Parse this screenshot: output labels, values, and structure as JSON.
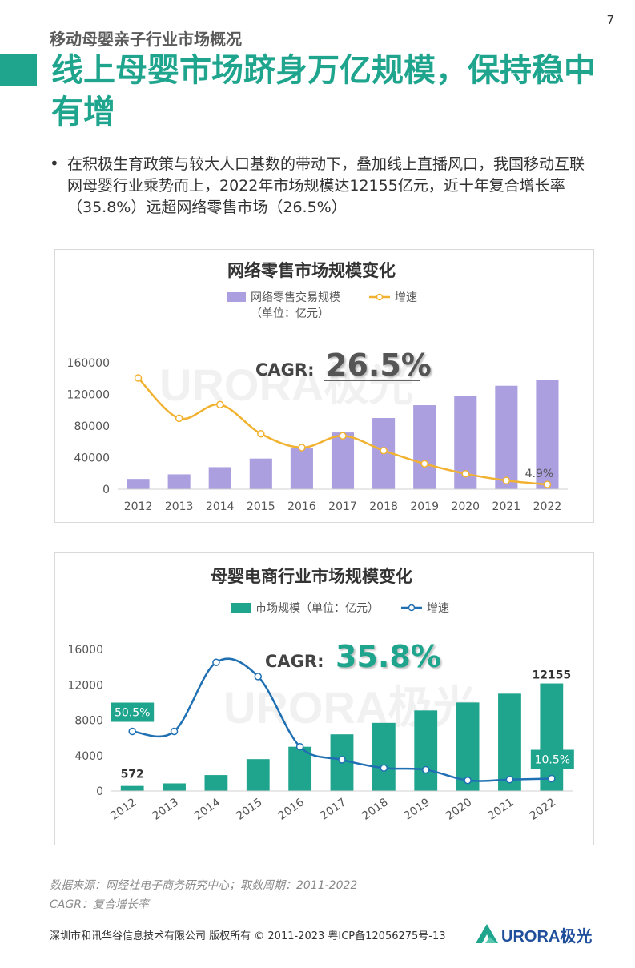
{
  "page": {
    "number": "7",
    "section": "移动母婴亲子行业市场概况",
    "title": "线上母婴市场跻身万亿规模，保持稳中有增",
    "bullet": "•",
    "summary": "在积极生育政策与较大人口基数的带动下，叠加线上直播风口，我国移动互联网母婴行业乘势而上，2022年市场规模达12155亿元，近十年复合增长率（35.8%）远超网络零售市场（26.5%）"
  },
  "chart_data": [
    {
      "type": "bar",
      "title": "网络零售市场规模变化",
      "categories": [
        "2012",
        "2013",
        "2014",
        "2015",
        "2016",
        "2017",
        "2018",
        "2019",
        "2020",
        "2021",
        "2022"
      ],
      "series": [
        {
          "name": "网络零售交易规模",
          "unit_note": "（单位：亿元）",
          "type": "bar",
          "color": "#ab9fdf",
          "values": [
            13000,
            18800,
            27900,
            38800,
            51600,
            71800,
            90100,
            106300,
            117600,
            130900,
            137900
          ]
        },
        {
          "name": "增速",
          "type": "line",
          "color": "#f2b231",
          "axis": "secondary",
          "values": [
            64.6,
            42.0,
            49.7,
            33.3,
            25.6,
            32.2,
            23.9,
            16.5,
            10.9,
            7.1,
            4.9
          ]
        }
      ],
      "ylim": [
        0,
        160000
      ],
      "yticks": [
        "0",
        "40000",
        "80000",
        "120000",
        "160000"
      ],
      "annotations": {
        "cagr_label": "CAGR:",
        "cagr_value": "26.5%",
        "last_growth_label": "4.9%"
      },
      "grid": false,
      "legend": "top"
    },
    {
      "type": "bar",
      "title": "母婴电商行业市场规模变化",
      "categories": [
        "2012",
        "2013",
        "2014",
        "2015",
        "2016",
        "2017",
        "2018",
        "2019",
        "2020",
        "2021",
        "2022"
      ],
      "series": [
        {
          "name": "市场规模（单位：亿元）",
          "type": "bar",
          "color": "#1fa58d",
          "values": [
            572,
            860,
            1800,
            3600,
            5000,
            6400,
            7700,
            9100,
            10000,
            11000,
            12155
          ]
        },
        {
          "name": "增速",
          "type": "line",
          "color": "#1f6fb3",
          "axis": "secondary",
          "values": [
            50.5,
            50.5,
            109.0,
            97.0,
            37.5,
            26.5,
            19.5,
            18.0,
            9.0,
            9.7,
            10.5
          ]
        }
      ],
      "ylim": [
        0,
        16000
      ],
      "yticks": [
        "0",
        "4000",
        "8000",
        "12000",
        "16000"
      ],
      "annotations": {
        "cagr_label": "CAGR:",
        "cagr_value": "35.8%",
        "first_value_label": "572",
        "last_value_label": "12155",
        "first_growth_label": "50.5%",
        "last_growth_label": "10.5%"
      },
      "grid": false,
      "legend": "top"
    }
  ],
  "watermark": "URORA极光",
  "source": {
    "line1": "数据来源：网经社电子商务研究中心；取数周期：2011-2022",
    "line2": "CAGR：复合增长率"
  },
  "footer": {
    "copyright": "深圳市和讯华谷信息技术有限公司 版权所有 © 2011-2023 粤ICP备12056275号-13",
    "logo_text": "URORA极光"
  },
  "colors": {
    "accent": "#1fa58d",
    "retail_bar": "#ab9fdf",
    "retail_line": "#f2b231",
    "mb_bar": "#1fa58d",
    "mb_line": "#1f6fb3"
  }
}
